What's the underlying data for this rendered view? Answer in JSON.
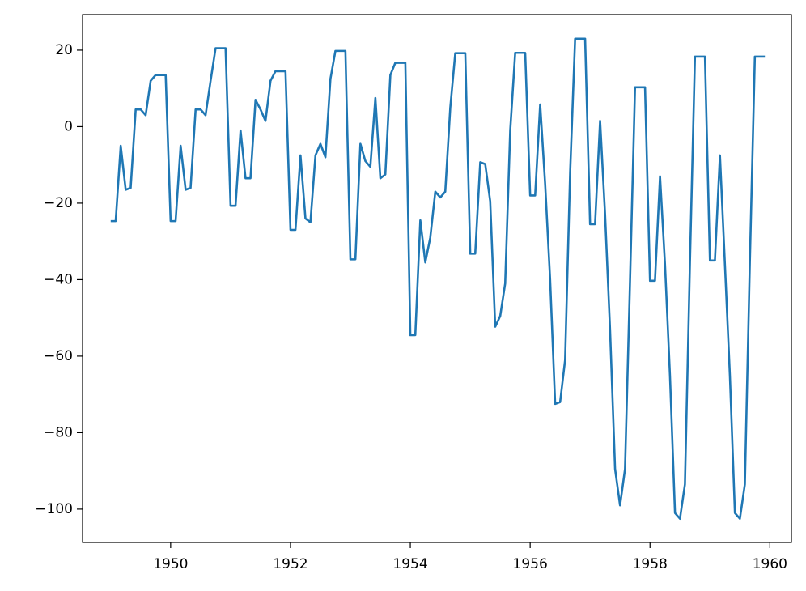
{
  "chart_data": {
    "type": "line",
    "x": [
      1949,
      1949.083,
      1949.167,
      1949.25,
      1949.333,
      1949.417,
      1949.5,
      1949.583,
      1949.667,
      1949.75,
      1949.833,
      1949.917,
      1950,
      1950.083,
      1950.167,
      1950.25,
      1950.333,
      1950.417,
      1950.5,
      1950.583,
      1950.667,
      1950.75,
      1950.833,
      1950.917,
      1951,
      1951.083,
      1951.167,
      1951.25,
      1951.333,
      1951.417,
      1951.5,
      1951.583,
      1951.667,
      1951.75,
      1951.833,
      1951.917,
      1952,
      1952.083,
      1952.167,
      1952.25,
      1952.333,
      1952.417,
      1952.5,
      1952.583,
      1952.667,
      1952.75,
      1952.833,
      1952.917,
      1953,
      1953.083,
      1953.167,
      1953.25,
      1953.333,
      1953.417,
      1953.5,
      1953.583,
      1953.667,
      1953.75,
      1953.833,
      1953.917,
      1954,
      1954.083,
      1954.167,
      1954.25,
      1954.333,
      1954.417,
      1954.5,
      1954.583,
      1954.667,
      1954.75,
      1954.833,
      1954.917,
      1955,
      1955.083,
      1955.167,
      1955.25,
      1955.333,
      1955.417,
      1955.5,
      1955.583,
      1955.667,
      1955.75,
      1955.833,
      1955.917,
      1956,
      1956.083,
      1956.167,
      1956.25,
      1956.333,
      1956.417,
      1956.5,
      1956.583,
      1956.667,
      1956.75,
      1956.833,
      1956.917,
      1957,
      1957.083,
      1957.167,
      1957.25,
      1957.333,
      1957.417,
      1957.5,
      1957.583,
      1957.667,
      1957.75,
      1957.833,
      1957.917,
      1958,
      1958.083,
      1958.167,
      1958.25,
      1958.333,
      1958.417,
      1958.5,
      1958.583,
      1958.667,
      1958.75,
      1958.833,
      1958.917,
      1959,
      1959.083,
      1959.167,
      1959.25,
      1959.333,
      1959.417,
      1959.5,
      1959.583,
      1959.667,
      1959.75,
      1959.833,
      1959.917
    ],
    "series": [
      {
        "color": "#1f77b4",
        "values": [
          -24.7,
          -24.7,
          -5,
          -16.5,
          -16,
          4.5,
          4.5,
          3,
          12,
          13.5,
          13.5,
          13.5,
          -24.7,
          -24.7,
          -5,
          -16.5,
          -16,
          4.5,
          4.5,
          3,
          12,
          20.5,
          20.5,
          20.5,
          -20.7,
          -20.7,
          -1,
          -13.5,
          -13.5,
          7,
          4.5,
          1.5,
          12,
          14.5,
          14.5,
          14.5,
          -27,
          -27,
          -7.5,
          -24,
          -25,
          -7.5,
          -4.5,
          -8,
          12.5,
          19.8,
          19.8,
          19.8,
          -34.7,
          -34.7,
          -4.5,
          -9,
          -10.5,
          7.5,
          -13.5,
          -12.5,
          13.5,
          16.7,
          16.7,
          16.7,
          -54.5,
          -54.5,
          -24.5,
          -35.5,
          -29,
          -17,
          -18.5,
          -17,
          5,
          19.2,
          19.2,
          19.2,
          -33.2,
          -33.2,
          -9.3,
          -9.8,
          -19.5,
          -52.3,
          -49.5,
          -41,
          -1,
          19.3,
          19.3,
          19.3,
          -18,
          -18,
          5.8,
          -15,
          -40,
          -72.5,
          -72,
          -61,
          -12,
          23,
          23,
          23,
          -25.5,
          -25.5,
          1.5,
          -23,
          -53,
          -89.5,
          -99,
          -89.5,
          -40,
          10.3,
          10.3,
          10.3,
          -40.3,
          -40.3,
          -13,
          -36,
          -65,
          -101,
          -102.5,
          -93.5,
          -35,
          18.3,
          18.3,
          18.3,
          -35,
          -35,
          -7.5,
          -36,
          -65,
          -101,
          -102.5,
          -93.5,
          -35,
          18.3,
          18.3,
          18.3
        ]
      }
    ],
    "xlim": [
      1948.53,
      1960.36
    ],
    "ylim": [
      -108.7,
      29.3
    ],
    "xticks": [
      1950,
      1952,
      1954,
      1956,
      1958,
      1960
    ],
    "yticks": [
      {
        "value": -100,
        "label": "−100"
      },
      {
        "value": -80,
        "label": "−80"
      },
      {
        "value": -60,
        "label": "−60"
      },
      {
        "value": -40,
        "label": "−40"
      },
      {
        "value": -20,
        "label": "−20"
      },
      0,
      20
    ]
  }
}
